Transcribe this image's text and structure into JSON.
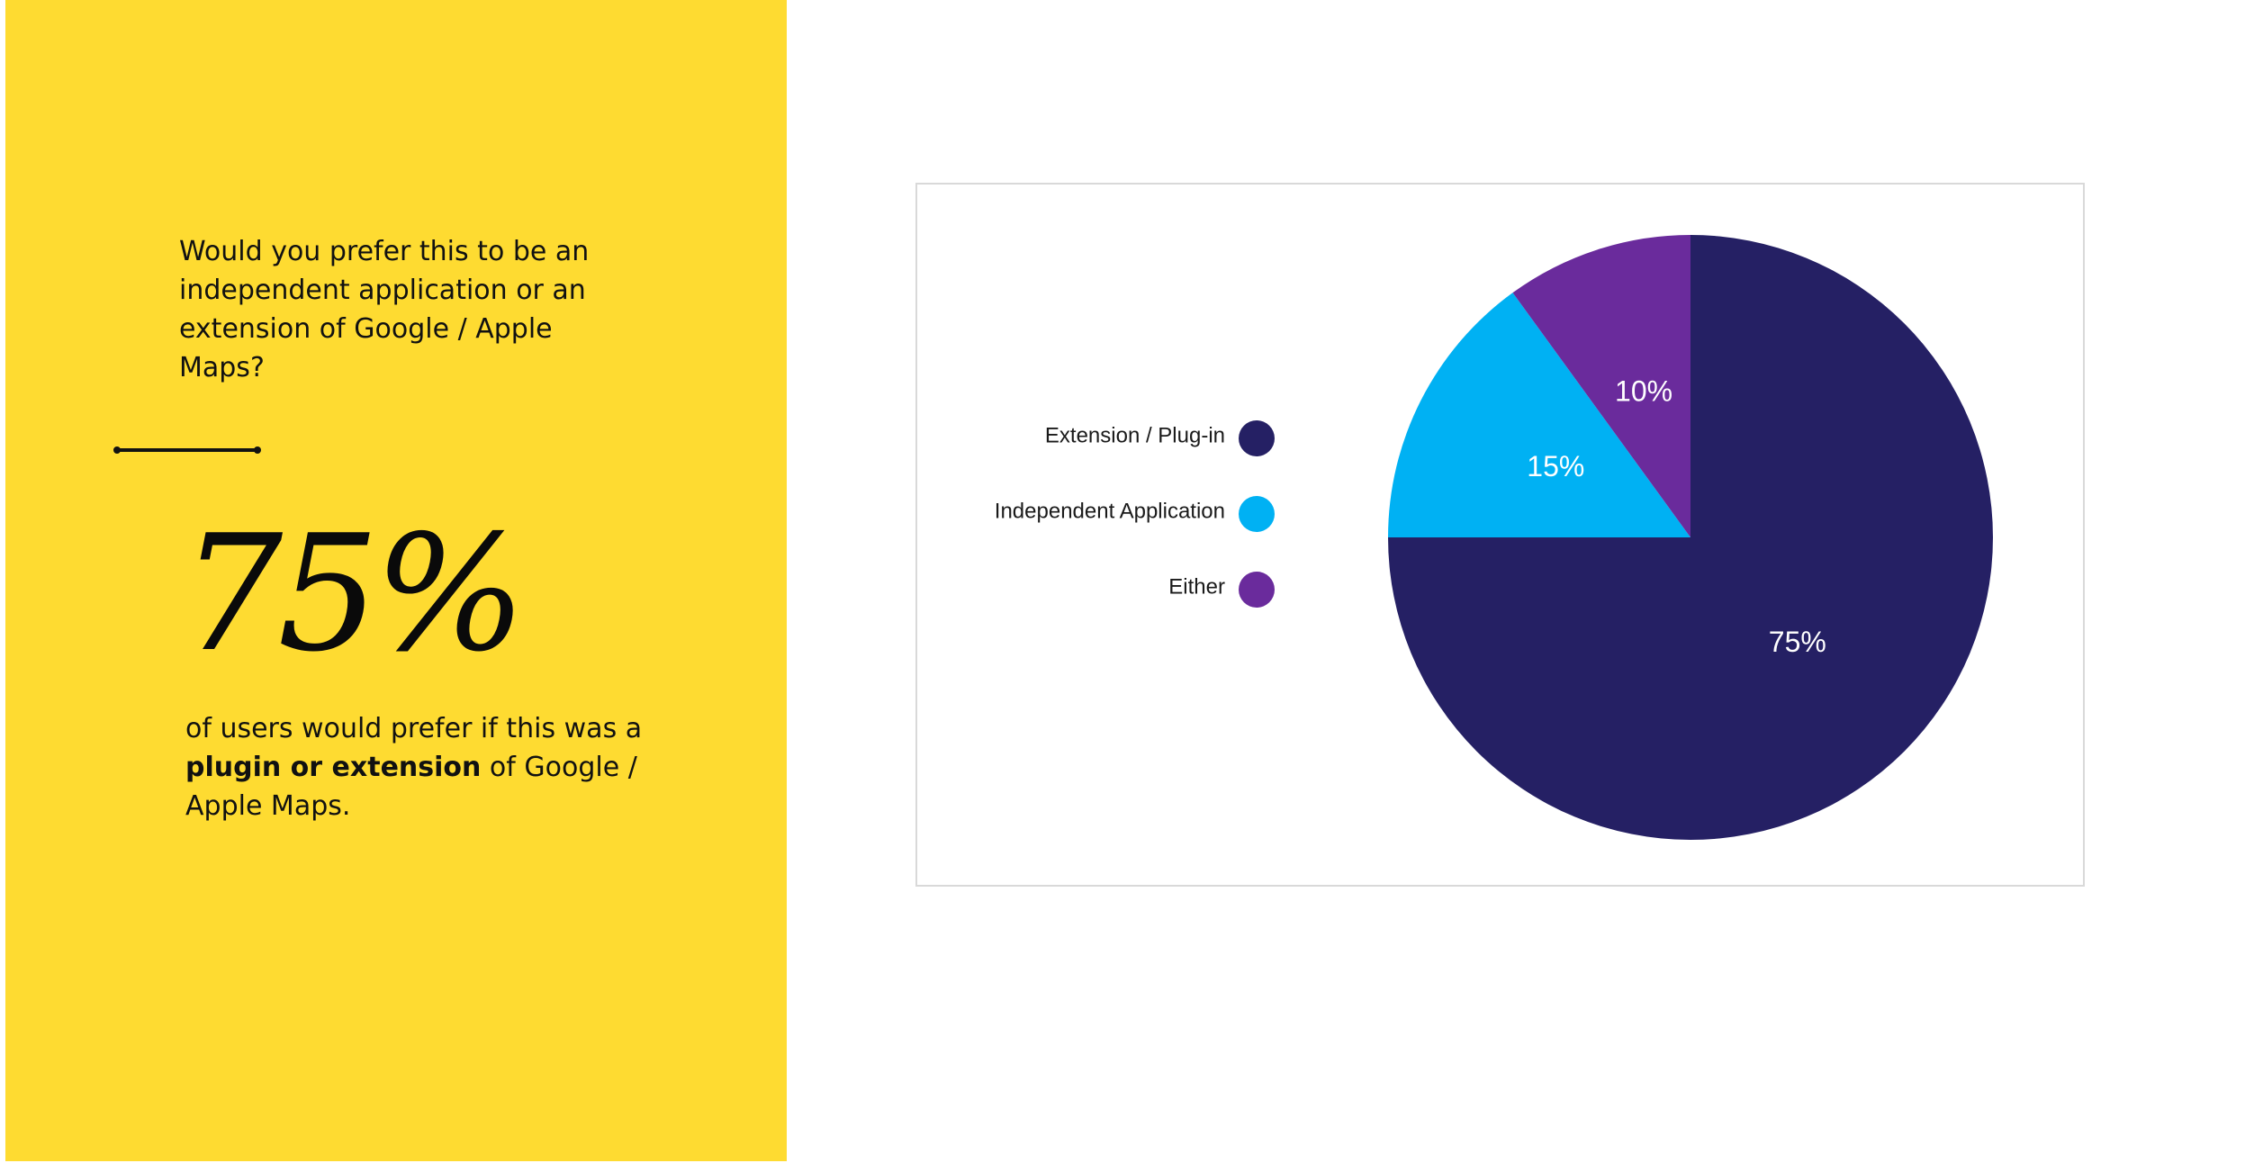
{
  "panel": {
    "question": "Would you prefer this to be an independent application or an extension of Google / Apple Maps?",
    "stat_value": "75%",
    "stat_desc_prefix": "of users would prefer if this was a",
    "stat_desc_bold": "plugin or extension",
    "stat_desc_suffix": "of Google / Apple Maps.",
    "background_color": "#fedb31"
  },
  "chart_data": {
    "type": "pie",
    "categories": [
      "Extension / Plug-in",
      "Independent Application",
      "Either"
    ],
    "values": [
      75,
      15,
      10
    ],
    "labels": [
      "75%",
      "15%",
      "10%"
    ],
    "colors": [
      "#252064",
      "#00b1f3",
      "#6a2b9c"
    ],
    "title": "",
    "legend_position": "left",
    "start_direction": "12 o'clock",
    "direction": "clockwise"
  }
}
